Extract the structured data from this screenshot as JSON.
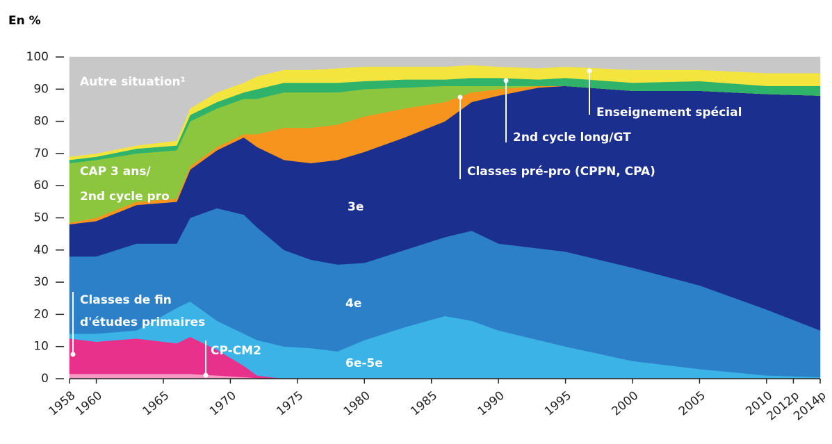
{
  "chart_data": {
    "type": "stacked_area",
    "ylabel": "En %",
    "x": [
      1958,
      1960,
      1963,
      1966,
      1967,
      1969,
      1971,
      1972,
      1974,
      1976,
      1978,
      1980,
      1983,
      1986,
      1988,
      1990,
      1993,
      1995,
      2000,
      2005,
      2010,
      2014
    ],
    "xlim": [
      1958,
      2014
    ],
    "xticks": [
      1958,
      1960,
      1965,
      1970,
      1975,
      1980,
      1985,
      1990,
      1995,
      2000,
      2005,
      2010,
      {
        "value": 2012,
        "label": "2012p"
      },
      {
        "value": 2014,
        "label": "2014p"
      }
    ],
    "ylim": [
      0,
      100
    ],
    "yticks": [
      0,
      10,
      20,
      30,
      40,
      50,
      60,
      70,
      80,
      90,
      100
    ],
    "series": [
      {
        "name": "CP-CM2",
        "color": "#f59bc3",
        "values": [
          1.5,
          1.5,
          1.5,
          1.5,
          1.5,
          1,
          0.5,
          0.2,
          0,
          0,
          0,
          0,
          0,
          0,
          0,
          0,
          0,
          0,
          0,
          0,
          0,
          0
        ]
      },
      {
        "name": "Classes de fin d'études primaires",
        "color": "#e8318a",
        "values": [
          11,
          10,
          11,
          9.5,
          11.5,
          8,
          3.5,
          0.8,
          0,
          0,
          0,
          0,
          0,
          0,
          0,
          0,
          0,
          0,
          0,
          0,
          0,
          0
        ]
      },
      {
        "name": "6e-5e",
        "color": "#3cb3e6",
        "values": [
          1.5,
          2.5,
          2.5,
          11,
          11,
          9,
          10,
          11,
          10,
          9.5,
          8.5,
          12,
          16,
          19.5,
          18,
          15,
          12,
          10,
          5.5,
          3,
          1,
          0.5
        ]
      },
      {
        "name": "4e",
        "color": "#2b80c7",
        "values": [
          24,
          24,
          27,
          20,
          26,
          35,
          37,
          35,
          30,
          27.5,
          27,
          24,
          24,
          24.5,
          28,
          27,
          28.5,
          29.5,
          29,
          26,
          20.5,
          14.5
        ]
      },
      {
        "name": "3e",
        "color": "#1b2f8e",
        "values": [
          10,
          11,
          12,
          13,
          15,
          18,
          24,
          25,
          28,
          30,
          32.5,
          34.5,
          35,
          36,
          40,
          46,
          50,
          51.5,
          55,
          60.5,
          67,
          73
        ]
      },
      {
        "name": "Classes pré-pro (CPPN, CPA)",
        "color": "#f7941d",
        "values": [
          0.5,
          1,
          1,
          1,
          1,
          1,
          1,
          4,
          10,
          11,
          11,
          11,
          9,
          6,
          3,
          2,
          0.5,
          0,
          0,
          0,
          0,
          0
        ]
      },
      {
        "name": "CAP 3 ans/2nd cycle pro",
        "color": "#8cc63f",
        "values": [
          18.5,
          18,
          15,
          15,
          14,
          12,
          11,
          11,
          11,
          11,
          10,
          8.5,
          6.5,
          5,
          2,
          1,
          0,
          0,
          0,
          0,
          0,
          0
        ]
      },
      {
        "name": "2nd cycle long/GT",
        "color": "#2fb36b",
        "values": [
          1,
          1,
          1.5,
          1.5,
          2,
          2,
          2,
          3,
          3,
          3,
          3,
          2.5,
          2.5,
          2,
          2.5,
          2.5,
          2,
          2.5,
          2.5,
          3,
          2.5,
          3
        ]
      },
      {
        "name": "Enseignement spécial",
        "color": "#f3e53d",
        "values": [
          1,
          1,
          1,
          1.5,
          2,
          3,
          3,
          4,
          4,
          4,
          4.5,
          4.5,
          4,
          4,
          4,
          3.5,
          3.5,
          3.5,
          4,
          3.5,
          4,
          4
        ]
      },
      {
        "name": "Autre situation",
        "color": "#c8c8c8",
        "values": [
          31,
          30,
          27.5,
          26,
          16,
          11,
          8,
          6,
          4,
          4,
          3.5,
          3,
          3,
          3,
          2.5,
          3,
          3.5,
          3,
          4,
          4,
          5,
          5
        ]
      }
    ],
    "annotations": [
      "Autre situation¹",
      "CAP 3 ans/",
      "2nd cycle pro",
      "3e",
      "4e",
      "Classes de fin",
      "d'études primaires",
      "CP-CM2",
      "6e-5e",
      "Classes pré-pro (CPPN, CPA)",
      "2nd cycle long/GT",
      "Enseignement spécial"
    ]
  }
}
